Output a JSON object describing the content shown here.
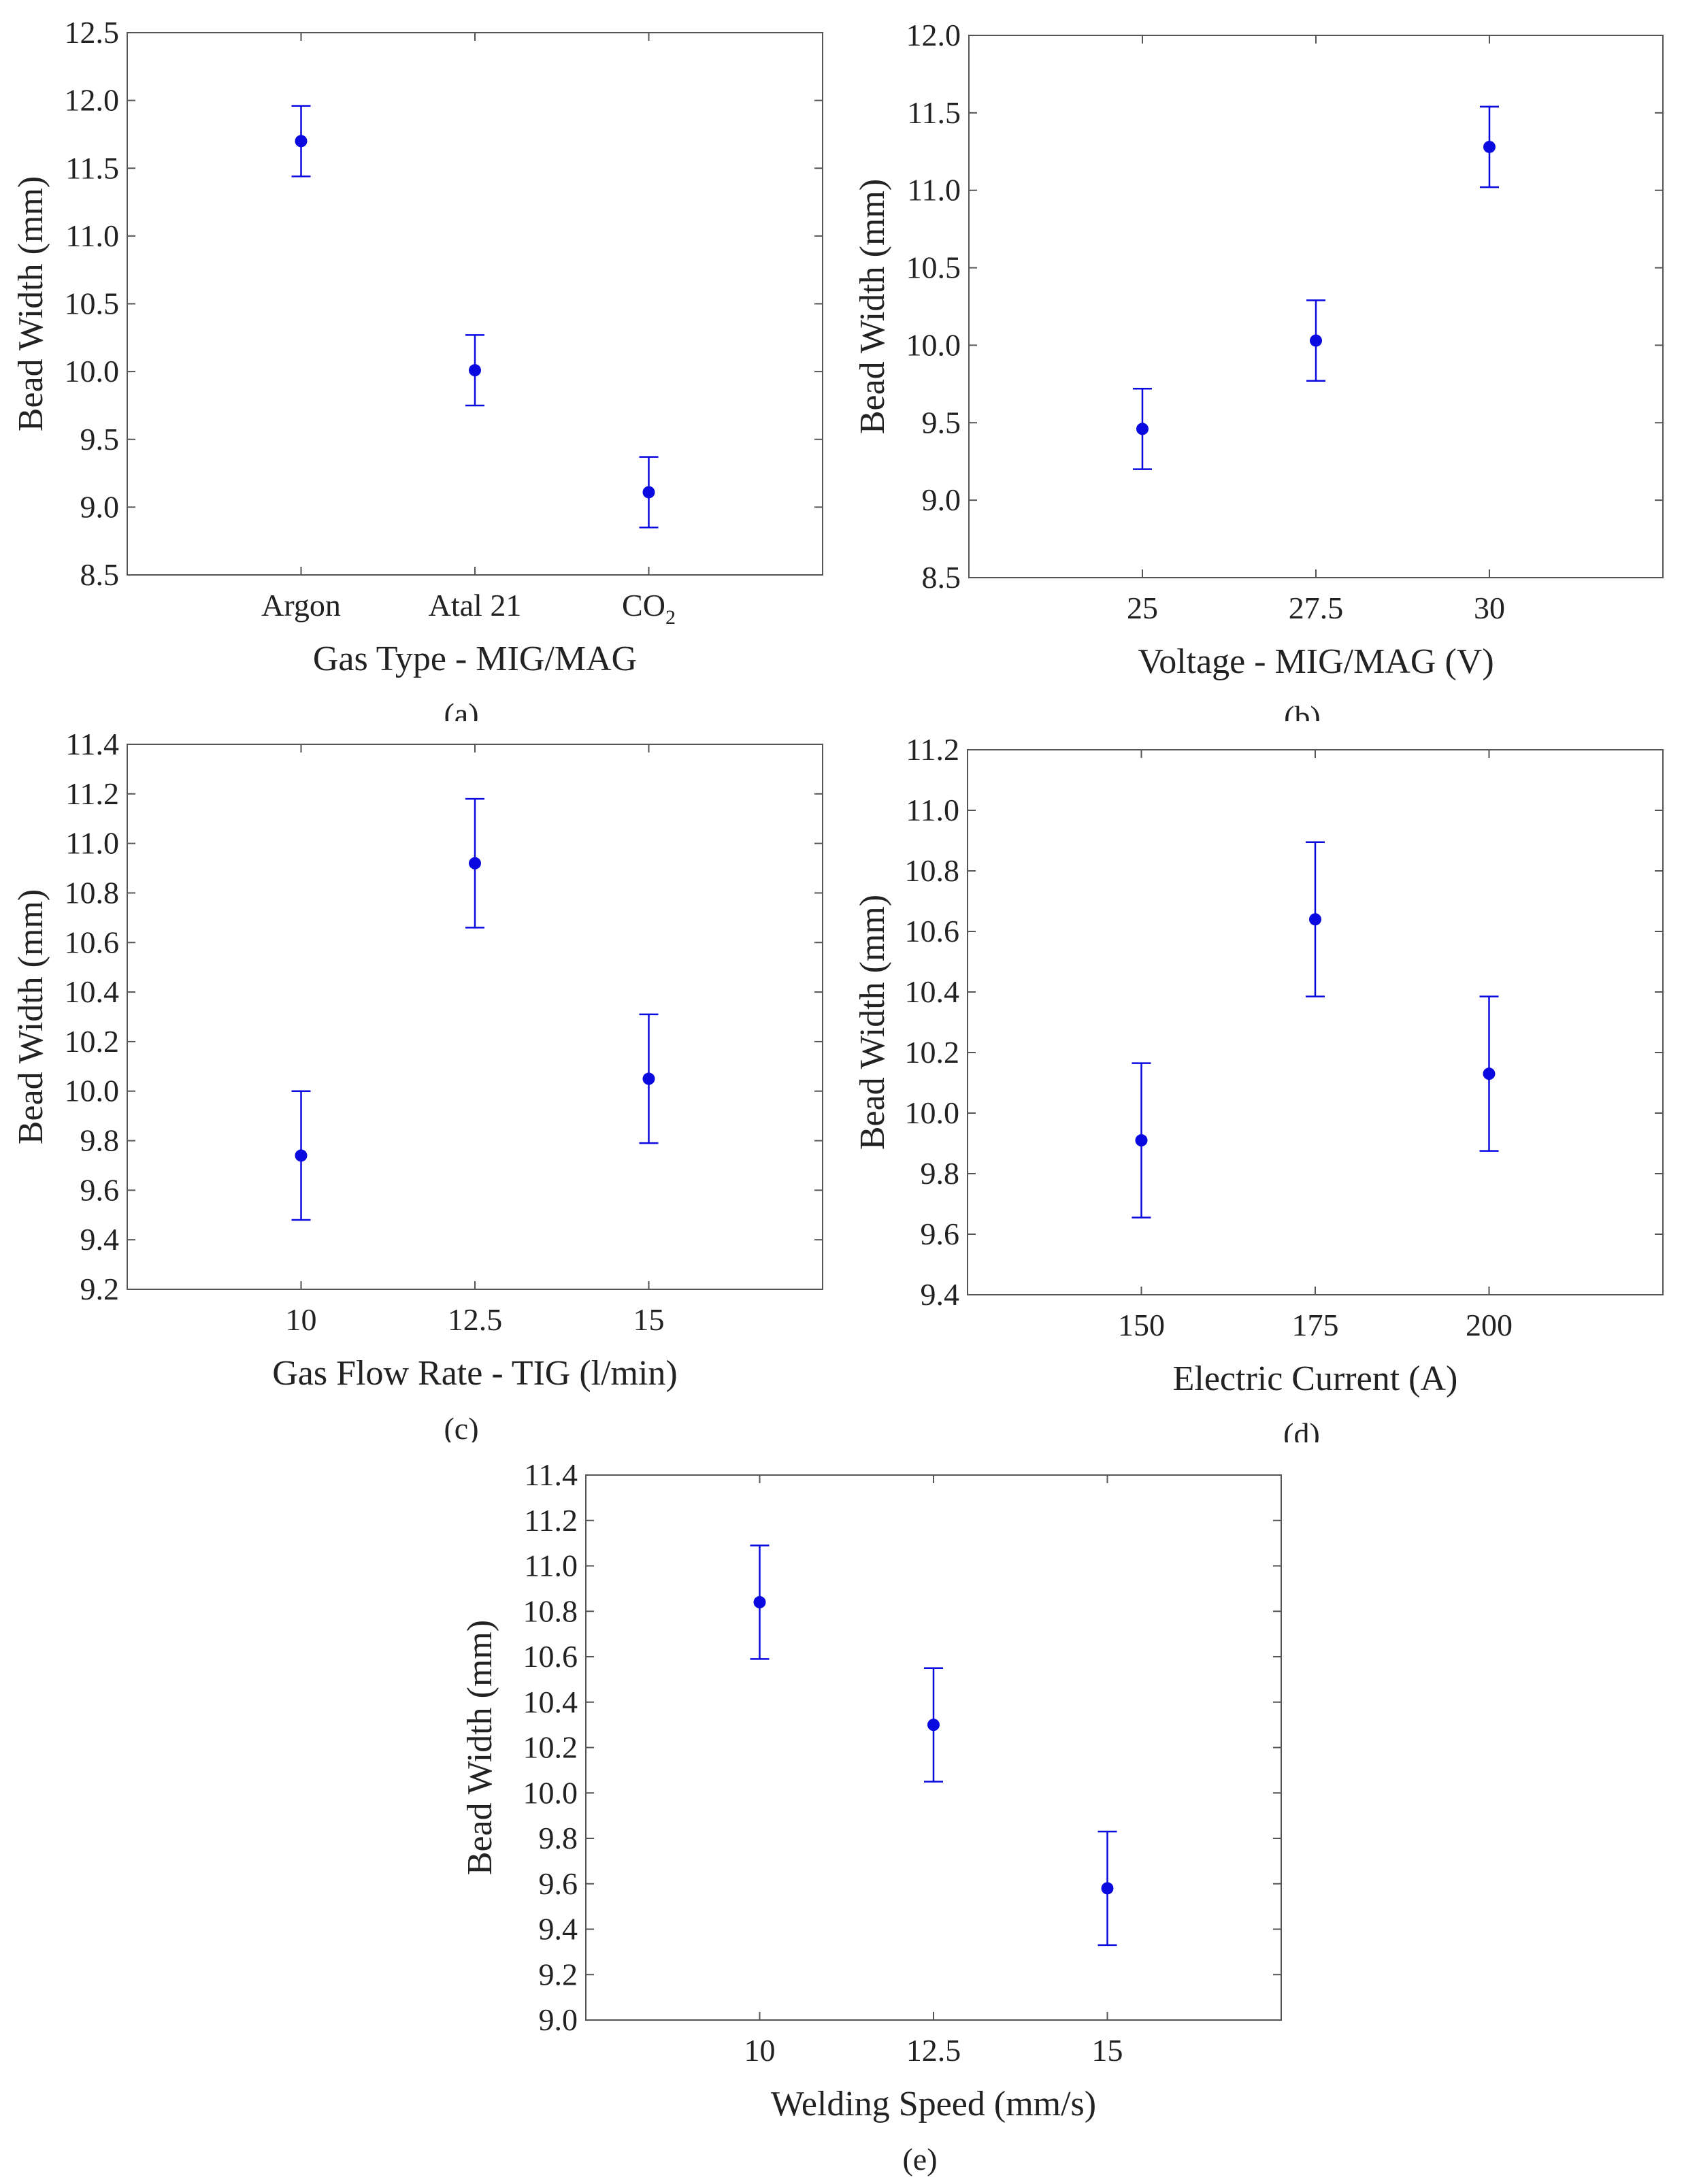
{
  "chart_data": [
    {
      "type": "scatter",
      "caption": "(a)",
      "xlabel": "Gas Type - MIG/MAG",
      "ylabel": "Bead Width (mm)",
      "categories": [
        "Argon",
        "Atal 21",
        "CO2"
      ],
      "category_display": [
        {
          "main": "Argon",
          "sub": ""
        },
        {
          "main": "Atal 21",
          "sub": ""
        },
        {
          "main": "CO",
          "sub": "2"
        }
      ],
      "values": [
        11.7,
        10.01,
        9.11
      ],
      "error": [
        0.26,
        0.26,
        0.26
      ],
      "ylim": [
        8.5,
        12.5
      ],
      "yticks": [
        "8.5",
        "9.0",
        "9.5",
        "10.0",
        "10.5",
        "11.0",
        "11.5",
        "12.0",
        "12.5"
      ],
      "grid": false,
      "color": "#0a0ae0"
    },
    {
      "type": "scatter",
      "caption": "(b)",
      "xlabel": "Voltage - MIG/MAG (V)",
      "ylabel": "Bead Width (mm)",
      "categories": [
        "25",
        "27.5",
        "30"
      ],
      "values": [
        9.46,
        10.03,
        11.28
      ],
      "error": [
        0.26,
        0.26,
        0.26
      ],
      "ylim": [
        8.5,
        12.0
      ],
      "yticks": [
        "8.5",
        "9.0",
        "9.5",
        "10.0",
        "10.5",
        "11.0",
        "11.5",
        "12.0"
      ],
      "grid": false,
      "color": "#0a0ae0"
    },
    {
      "type": "scatter",
      "caption": "(c)",
      "xlabel": "Gas Flow Rate - TIG (l/min)",
      "ylabel": "Bead Width (mm)",
      "categories": [
        "10",
        "12.5",
        "15"
      ],
      "values": [
        9.74,
        10.92,
        10.05
      ],
      "error": [
        0.26,
        0.26,
        0.26
      ],
      "ylim": [
        9.2,
        11.4
      ],
      "yticks": [
        "9.2",
        "9.4",
        "9.6",
        "9.8",
        "10.0",
        "10.2",
        "10.4",
        "10.6",
        "10.8",
        "11.0",
        "11.2",
        "11.4"
      ],
      "grid": false,
      "color": "#0a0ae0"
    },
    {
      "type": "scatter",
      "caption": "(d)",
      "xlabel": "Electric Current (A)",
      "ylabel": "Bead Width (mm)",
      "categories": [
        "150",
        "175",
        "200"
      ],
      "values": [
        9.91,
        10.64,
        10.13
      ],
      "error": [
        0.255,
        0.255,
        0.255
      ],
      "ylim": [
        9.4,
        11.2
      ],
      "yticks": [
        "9.4",
        "9.6",
        "9.8",
        "10.0",
        "10.2",
        "10.4",
        "10.6",
        "10.8",
        "11.0",
        "11.2"
      ],
      "grid": false,
      "color": "#0a0ae0"
    },
    {
      "type": "scatter",
      "caption": "(e)",
      "xlabel": "Welding Speed (mm/s)",
      "ylabel": "Bead Width (mm)",
      "categories": [
        "10",
        "12.5",
        "15"
      ],
      "values": [
        10.84,
        10.3,
        9.58
      ],
      "error": [
        0.25,
        0.25,
        0.25
      ],
      "ylim": [
        9.0,
        11.4
      ],
      "yticks": [
        "9.0",
        "9.2",
        "9.4",
        "9.6",
        "9.8",
        "10.0",
        "10.2",
        "10.4",
        "10.6",
        "10.8",
        "11.0",
        "11.2",
        "11.4"
      ],
      "grid": false,
      "color": "#0a0ae0"
    }
  ]
}
